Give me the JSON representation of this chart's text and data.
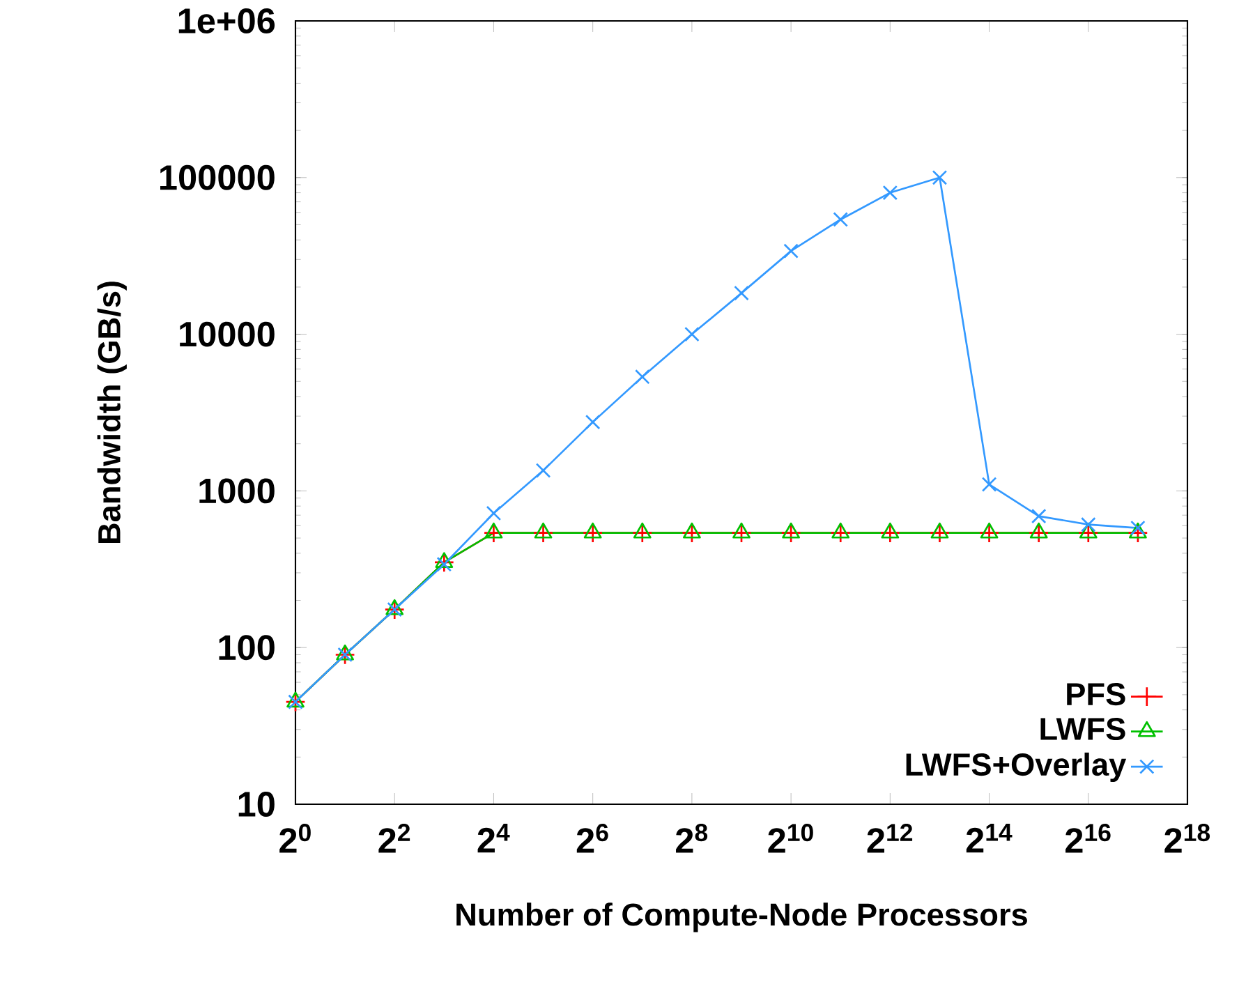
{
  "chart_data": {
    "type": "line",
    "xlabel": "Number of Compute-Node Processors",
    "ylabel": "Bandwidth (GB/s)",
    "x": [
      1,
      2,
      4,
      8,
      16,
      32,
      64,
      128,
      256,
      512,
      1024,
      2048,
      4096,
      8192,
      16384,
      32768,
      65536,
      131072
    ],
    "series": [
      {
        "name": "PFS",
        "color": "#ff0000",
        "marker": "cross",
        "values": [
          45,
          90,
          175,
          350,
          540,
          540,
          540,
          540,
          540,
          540,
          540,
          540,
          540,
          540,
          540,
          540,
          540,
          540
        ]
      },
      {
        "name": "LWFS",
        "color": "#00c000",
        "marker": "triangle",
        "values": [
          45,
          90,
          175,
          350,
          540,
          540,
          540,
          540,
          540,
          540,
          540,
          540,
          540,
          540,
          540,
          540,
          540,
          540
        ]
      },
      {
        "name": "LWFS+Overlay",
        "color": "#3399ff",
        "marker": "x",
        "values": [
          45,
          90,
          175,
          340,
          720,
          1350,
          2750,
          5350,
          10000,
          18300,
          34000,
          54000,
          80000,
          100000,
          1100,
          690,
          610,
          580
        ]
      }
    ],
    "log": "xy",
    "grid": false,
    "legend": "bottom right",
    "line_style": "solid",
    "xlim": [
      1,
      262144
    ],
    "xticks": [
      {
        "value": 1,
        "label": "2$^{0}$"
      },
      {
        "value": 4,
        "label": "2$^{2}$"
      },
      {
        "value": 16,
        "label": "2$^{4}$"
      },
      {
        "value": 64,
        "label": "2$^{6}$"
      },
      {
        "value": 256,
        "label": "2$^{8}$"
      },
      {
        "value": 1024,
        "label": "2$^{10}$"
      },
      {
        "value": 4096,
        "label": "2$^{12}$"
      },
      {
        "value": 16384,
        "label": "2$^{14}$"
      },
      {
        "value": 65536,
        "label": "2$^{16}$"
      },
      {
        "value": 262144,
        "label": "2$^{18}$"
      }
    ],
    "ylim": [
      10,
      1000000
    ],
    "yticks": [
      10,
      100,
      1000,
      10000,
      100000,
      {
        "value": 1000000,
        "label": "1e+06"
      }
    ]
  }
}
